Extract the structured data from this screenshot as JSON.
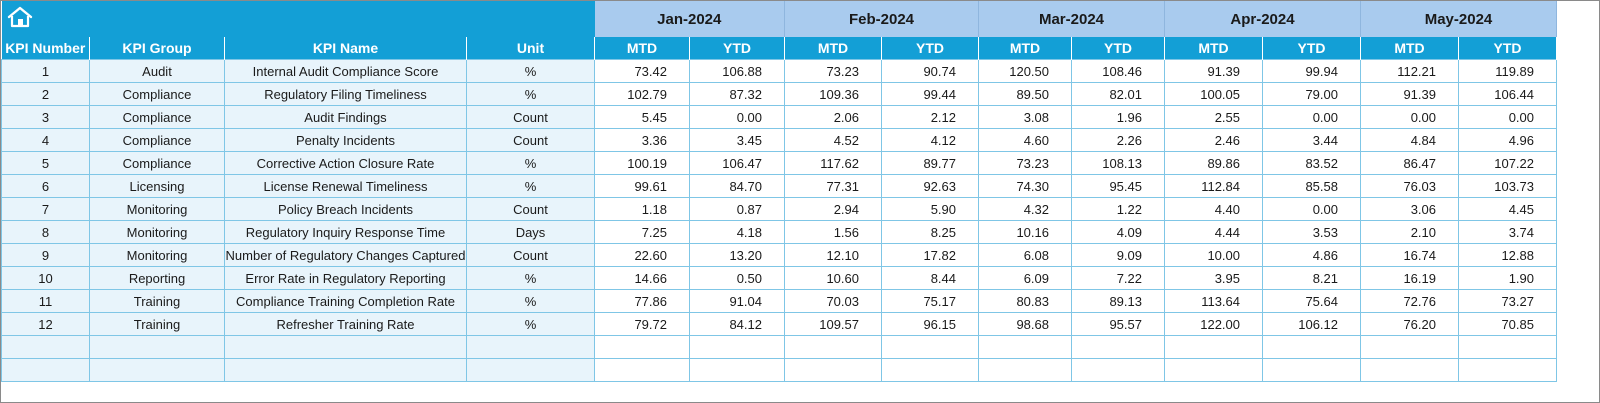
{
  "header": {
    "home_icon": "home-icon",
    "months": [
      "Jan-2024",
      "Feb-2024",
      "Mar-2024",
      "Apr-2024",
      "May-2024"
    ]
  },
  "columns": {
    "kpi_number": "KPI Number",
    "kpi_group": "KPI Group",
    "kpi_name": "KPI Name",
    "unit": "Unit",
    "mtd": "MTD",
    "ytd": "YTD"
  },
  "colors": {
    "header_blue": "#139fd6",
    "month_band": "#a9cbee",
    "label_fill": "#e8f4fb",
    "grid_line": "#7fc6e6"
  },
  "rows": [
    {
      "num": "1",
      "group": "Audit",
      "name": "Internal Audit Compliance Score",
      "unit": "%",
      "vals": [
        "73.42",
        "106.88",
        "73.23",
        "90.74",
        "120.50",
        "108.46",
        "91.39",
        "99.94",
        "112.21",
        "119.89"
      ]
    },
    {
      "num": "2",
      "group": "Compliance",
      "name": "Regulatory Filing Timeliness",
      "unit": "%",
      "vals": [
        "102.79",
        "87.32",
        "109.36",
        "99.44",
        "89.50",
        "82.01",
        "100.05",
        "79.00",
        "91.39",
        "106.44"
      ]
    },
    {
      "num": "3",
      "group": "Compliance",
      "name": "Audit Findings",
      "unit": "Count",
      "vals": [
        "5.45",
        "0.00",
        "2.06",
        "2.12",
        "3.08",
        "1.96",
        "2.55",
        "0.00",
        "0.00",
        "0.00"
      ]
    },
    {
      "num": "4",
      "group": "Compliance",
      "name": "Penalty Incidents",
      "unit": "Count",
      "vals": [
        "3.36",
        "3.45",
        "4.52",
        "4.12",
        "4.60",
        "2.26",
        "2.46",
        "3.44",
        "4.84",
        "4.96"
      ]
    },
    {
      "num": "5",
      "group": "Compliance",
      "name": "Corrective Action Closure Rate",
      "unit": "%",
      "vals": [
        "100.19",
        "106.47",
        "117.62",
        "89.77",
        "73.23",
        "108.13",
        "89.86",
        "83.52",
        "86.47",
        "107.22"
      ]
    },
    {
      "num": "6",
      "group": "Licensing",
      "name": "License Renewal Timeliness",
      "unit": "%",
      "vals": [
        "99.61",
        "84.70",
        "77.31",
        "92.63",
        "74.30",
        "95.45",
        "112.84",
        "85.58",
        "76.03",
        "103.73"
      ]
    },
    {
      "num": "7",
      "group": "Monitoring",
      "name": "Policy Breach Incidents",
      "unit": "Count",
      "vals": [
        "1.18",
        "0.87",
        "2.94",
        "5.90",
        "4.32",
        "1.22",
        "4.40",
        "0.00",
        "3.06",
        "4.45"
      ]
    },
    {
      "num": "8",
      "group": "Monitoring",
      "name": "Regulatory Inquiry Response Time",
      "unit": "Days",
      "vals": [
        "7.25",
        "4.18",
        "1.56",
        "8.25",
        "10.16",
        "4.09",
        "4.44",
        "3.53",
        "2.10",
        "3.74"
      ]
    },
    {
      "num": "9",
      "group": "Monitoring",
      "name": "Number of Regulatory Changes Captured",
      "unit": "Count",
      "vals": [
        "22.60",
        "13.20",
        "12.10",
        "17.82",
        "6.08",
        "9.09",
        "10.00",
        "4.86",
        "16.74",
        "12.88"
      ]
    },
    {
      "num": "10",
      "group": "Reporting",
      "name": "Error Rate in Regulatory Reporting",
      "unit": "%",
      "vals": [
        "14.66",
        "0.50",
        "10.60",
        "8.44",
        "6.09",
        "7.22",
        "3.95",
        "8.21",
        "16.19",
        "1.90"
      ]
    },
    {
      "num": "11",
      "group": "Training",
      "name": "Compliance Training Completion Rate",
      "unit": "%",
      "vals": [
        "77.86",
        "91.04",
        "70.03",
        "75.17",
        "80.83",
        "89.13",
        "113.64",
        "75.64",
        "72.76",
        "73.27"
      ]
    },
    {
      "num": "12",
      "group": "Training",
      "name": "Refresher Training Rate",
      "unit": "%",
      "vals": [
        "79.72",
        "84.12",
        "109.57",
        "96.15",
        "98.68",
        "95.57",
        "122.00",
        "106.12",
        "76.20",
        "70.85"
      ]
    },
    {
      "num": "",
      "group": "",
      "name": "",
      "unit": "",
      "vals": [
        "",
        "",
        "",
        "",
        "",
        "",
        "",
        "",
        "",
        ""
      ]
    },
    {
      "num": "",
      "group": "",
      "name": "",
      "unit": "",
      "vals": [
        "",
        "",
        "",
        "",
        "",
        "",
        "",
        "",
        "",
        ""
      ]
    }
  ]
}
